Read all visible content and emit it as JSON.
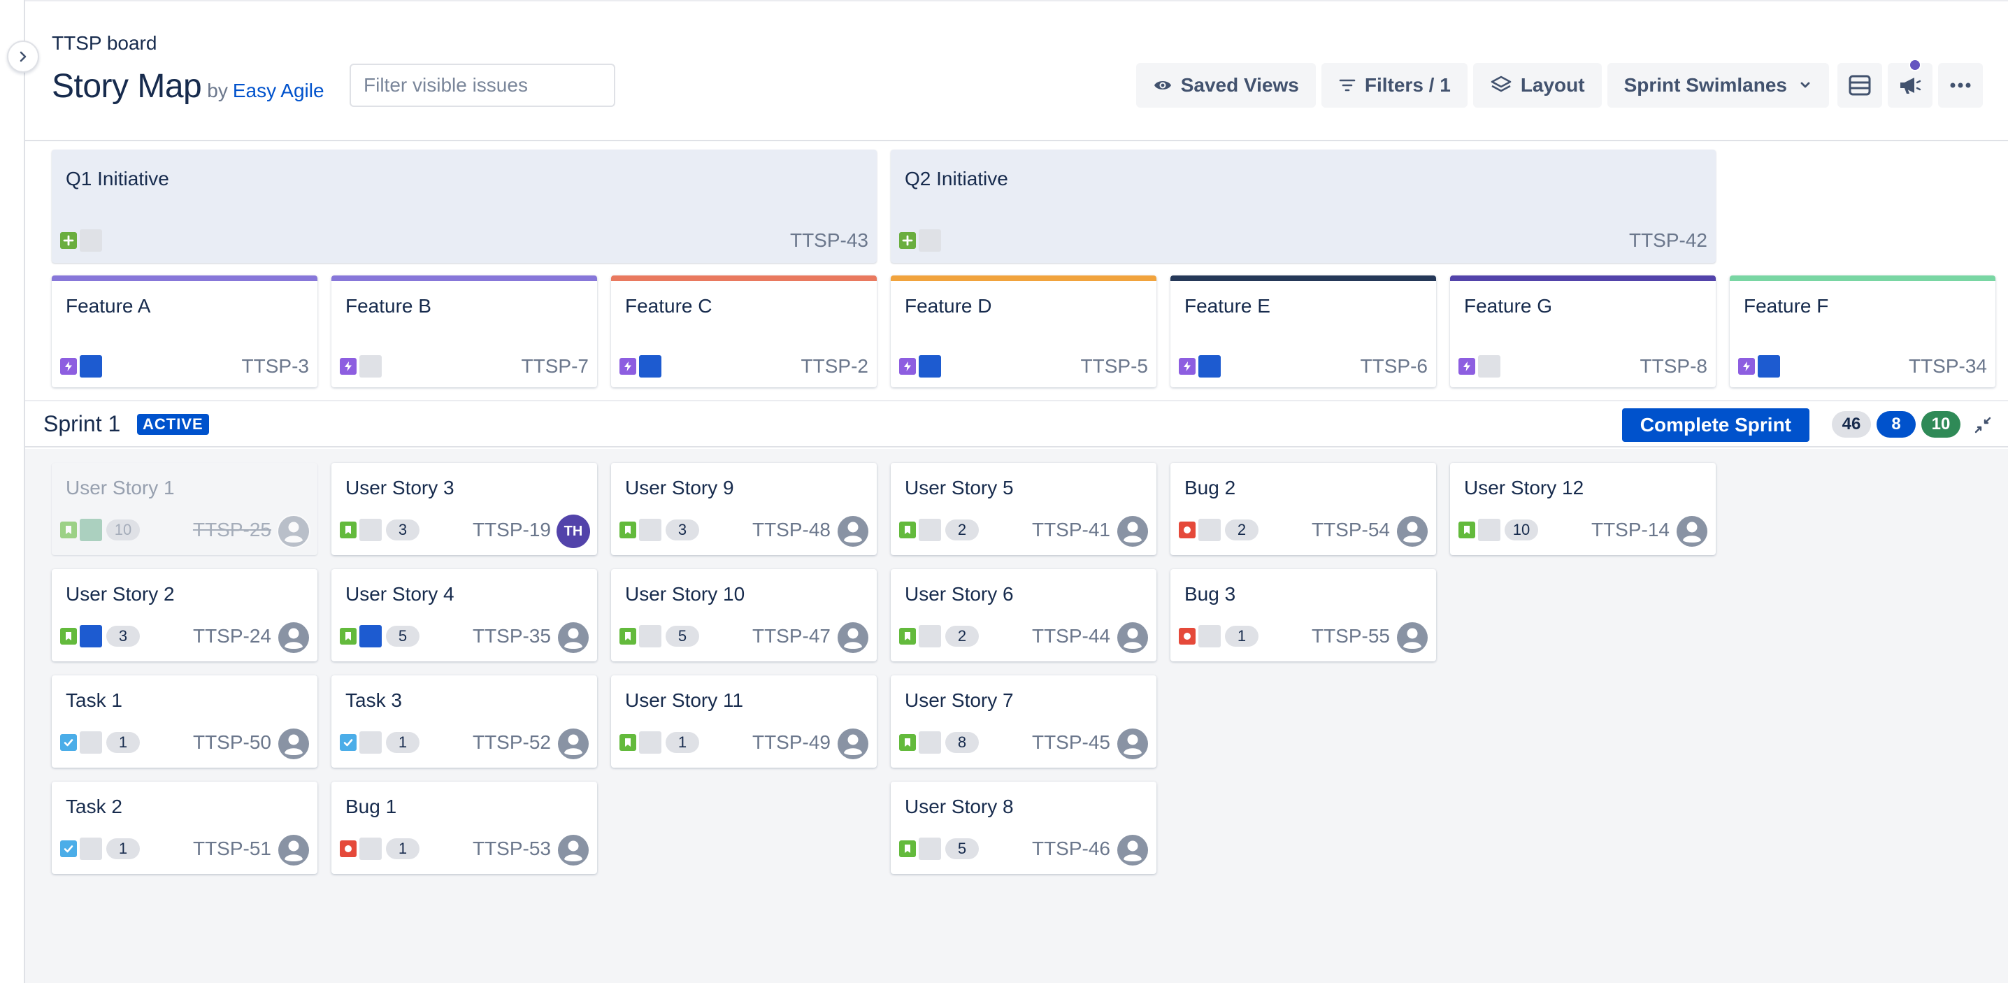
{
  "header": {
    "board_name": "TTSP board",
    "title": "Story Map",
    "by_prefix": "by",
    "by_brand": "Easy Agile",
    "filter_placeholder": "Filter visible issues",
    "toolbar": {
      "saved_views": "Saved Views",
      "filters": "Filters / 1",
      "layout": "Layout",
      "swimlanes": "Sprint Swimlanes"
    }
  },
  "initiatives": [
    {
      "title": "Q1 Initiative",
      "key": "TTSP-43"
    },
    {
      "title": "Q2 Initiative",
      "key": "TTSP-42"
    }
  ],
  "features": [
    {
      "title": "Feature A",
      "key": "TTSP-3",
      "color": "#8777d9",
      "square": "blue"
    },
    {
      "title": "Feature B",
      "key": "TTSP-7",
      "color": "#8777d9",
      "square": "grey"
    },
    {
      "title": "Feature C",
      "key": "TTSP-2",
      "color": "#e9795f",
      "square": "blue"
    },
    {
      "title": "Feature D",
      "key": "TTSP-5",
      "color": "#f1a33d",
      "square": "blue"
    },
    {
      "title": "Feature E",
      "key": "TTSP-6",
      "color": "#253858",
      "square": "blue"
    },
    {
      "title": "Feature G",
      "key": "TTSP-8",
      "color": "#5243aa",
      "square": "grey"
    },
    {
      "title": "Feature F",
      "key": "TTSP-34",
      "color": "#79d6a3",
      "square": "blue"
    }
  ],
  "sprint": {
    "name": "Sprint 1",
    "status": "ACTIVE",
    "complete_label": "Complete Sprint",
    "counts": {
      "todo": "46",
      "in_progress": "8",
      "done": "10"
    }
  },
  "columns": [
    [
      {
        "title": "User Story 1",
        "type": "story",
        "square": "teal",
        "estimate": "10",
        "key": "TTSP-25",
        "avatar": "",
        "done": true
      },
      {
        "title": "User Story 2",
        "type": "story",
        "square": "blue",
        "estimate": "3",
        "key": "TTSP-24",
        "avatar": ""
      },
      {
        "title": "Task 1",
        "type": "task",
        "square": "grey",
        "estimate": "1",
        "key": "TTSP-50",
        "avatar": ""
      },
      {
        "title": "Task 2",
        "type": "task",
        "square": "grey",
        "estimate": "1",
        "key": "TTSP-51",
        "avatar": ""
      }
    ],
    [
      {
        "title": "User Story 3",
        "type": "story",
        "square": "grey",
        "estimate": "3",
        "key": "TTSP-19",
        "avatar": "TH"
      },
      {
        "title": "User Story 4",
        "type": "story",
        "square": "blue",
        "estimate": "5",
        "key": "TTSP-35",
        "avatar": ""
      },
      {
        "title": "Task 3",
        "type": "task",
        "square": "grey",
        "estimate": "1",
        "key": "TTSP-52",
        "avatar": ""
      },
      {
        "title": "Bug 1",
        "type": "bug",
        "square": "grey",
        "estimate": "1",
        "key": "TTSP-53",
        "avatar": ""
      }
    ],
    [
      {
        "title": "User Story 9",
        "type": "story",
        "square": "grey",
        "estimate": "3",
        "key": "TTSP-48",
        "avatar": ""
      },
      {
        "title": "User Story 10",
        "type": "story",
        "square": "grey",
        "estimate": "5",
        "key": "TTSP-47",
        "avatar": ""
      },
      {
        "title": "User Story 11",
        "type": "story",
        "square": "grey",
        "estimate": "1",
        "key": "TTSP-49",
        "avatar": ""
      }
    ],
    [
      {
        "title": "User Story 5",
        "type": "story",
        "square": "grey",
        "estimate": "2",
        "key": "TTSP-41",
        "avatar": ""
      },
      {
        "title": "User Story 6",
        "type": "story",
        "square": "grey",
        "estimate": "2",
        "key": "TTSP-44",
        "avatar": ""
      },
      {
        "title": "User Story 7",
        "type": "story",
        "square": "grey",
        "estimate": "8",
        "key": "TTSP-45",
        "avatar": ""
      },
      {
        "title": "User Story 8",
        "type": "story",
        "square": "grey",
        "estimate": "5",
        "key": "TTSP-46",
        "avatar": ""
      }
    ],
    [
      {
        "title": "Bug 2",
        "type": "bug",
        "square": "grey",
        "estimate": "2",
        "key": "TTSP-54",
        "avatar": ""
      },
      {
        "title": "Bug 3",
        "type": "bug",
        "square": "grey",
        "estimate": "1",
        "key": "TTSP-55",
        "avatar": ""
      }
    ],
    [
      {
        "title": "User Story 12",
        "type": "story",
        "square": "grey",
        "estimate": "10",
        "key": "TTSP-14",
        "avatar": ""
      }
    ],
    []
  ]
}
